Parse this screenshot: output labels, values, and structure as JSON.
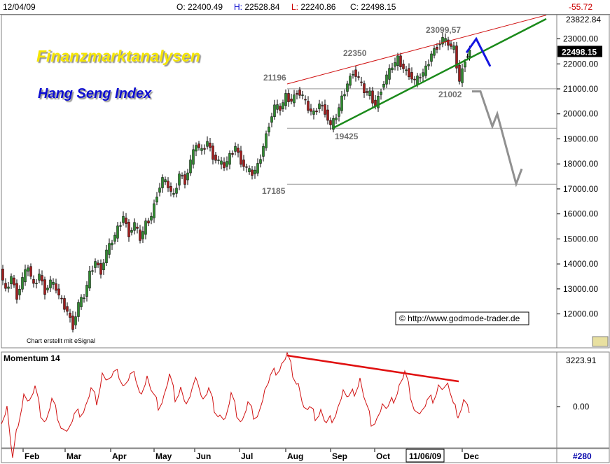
{
  "header": {
    "date": "12/04/09",
    "open_label": "O:",
    "open": "22400.49",
    "high_label": "H:",
    "high": "22528.84",
    "low_label": "L:",
    "low": "22240.86",
    "close_label": "C:",
    "close": "22498.15",
    "change": "-55.72"
  },
  "chart_data": [
    {
      "type": "candlestick",
      "title": "Finanzmarktanalysen",
      "subtitle": "Hang Seng Index",
      "credit": "Chart erstellt mit eSignal",
      "credit_link": "eSignal",
      "watermark": "http://www.godmode-trader.de",
      "ylim": [
        11000,
        23822.84
      ],
      "y_ticks": [
        12000,
        13000,
        14000,
        15000,
        16000,
        17000,
        18000,
        19000,
        20000,
        21000,
        22000,
        23000
      ],
      "y_tick_labels": [
        "12000.00",
        "13000.00",
        "14000.00",
        "15000.00",
        "16000.00",
        "17000.00",
        "18000.00",
        "19000.00",
        "20000.00",
        "21000.00",
        "22000.00",
        "23000.00"
      ],
      "y_top_label": "23822.84",
      "last_price_label": "22498.15",
      "months": [
        "Feb",
        "Mar",
        "Apr",
        "May",
        "Jun",
        "Jul",
        "Aug",
        "Sep",
        "Oct",
        "11/06/09",
        "Dec"
      ],
      "highlighted_month": "11/06/09",
      "price_path": [
        [
          0,
          13800
        ],
        [
          8,
          12900
        ],
        [
          16,
          13500
        ],
        [
          24,
          12700
        ],
        [
          32,
          13400
        ],
        [
          40,
          13900
        ],
        [
          48,
          13100
        ],
        [
          56,
          13600
        ],
        [
          64,
          12900
        ],
        [
          72,
          13300
        ],
        [
          80,
          13000
        ],
        [
          88,
          12500
        ],
        [
          96,
          12100
        ],
        [
          104,
          11500
        ],
        [
          112,
          12400
        ],
        [
          120,
          12700
        ],
        [
          128,
          13600
        ],
        [
          136,
          14100
        ],
        [
          144,
          13700
        ],
        [
          152,
          14500
        ],
        [
          160,
          14900
        ],
        [
          168,
          15400
        ],
        [
          176,
          15900
        ],
        [
          184,
          15200
        ],
        [
          192,
          15600
        ],
        [
          200,
          15000
        ],
        [
          208,
          15600
        ],
        [
          216,
          15900
        ],
        [
          224,
          16800
        ],
        [
          232,
          17400
        ],
        [
          240,
          17100
        ],
        [
          248,
          16700
        ],
        [
          256,
          17600
        ],
        [
          264,
          17300
        ],
        [
          272,
          18100
        ],
        [
          280,
          18800
        ],
        [
          288,
          18500
        ],
        [
          296,
          18900
        ],
        [
          304,
          18300
        ],
        [
          312,
          18100
        ],
        [
          320,
          17900
        ],
        [
          328,
          18300
        ],
        [
          336,
          18700
        ],
        [
          344,
          18100
        ],
        [
          352,
          17800
        ],
        [
          360,
          17600
        ],
        [
          368,
          17900
        ],
        [
          376,
          18700
        ],
        [
          384,
          19600
        ],
        [
          392,
          20300
        ],
        [
          400,
          20200
        ],
        [
          408,
          20700
        ],
        [
          416,
          20500
        ],
        [
          424,
          20900
        ],
        [
          432,
          20700
        ],
        [
          440,
          20200
        ],
        [
          448,
          20000
        ],
        [
          456,
          20400
        ],
        [
          464,
          20100
        ],
        [
          472,
          19500
        ],
        [
          480,
          19900
        ],
        [
          488,
          20600
        ],
        [
          496,
          21200
        ],
        [
          504,
          21700
        ],
        [
          512,
          21400
        ],
        [
          520,
          20900
        ],
        [
          528,
          20800
        ],
        [
          536,
          20300
        ],
        [
          544,
          21000
        ],
        [
          552,
          21500
        ],
        [
          560,
          21900
        ],
        [
          568,
          22200
        ],
        [
          576,
          21800
        ],
        [
          584,
          21600
        ],
        [
          592,
          21300
        ],
        [
          600,
          21500
        ],
        [
          608,
          21800
        ],
        [
          616,
          22400
        ],
        [
          624,
          22700
        ],
        [
          632,
          23000
        ],
        [
          640,
          22800
        ],
        [
          648,
          22600
        ],
        [
          656,
          21300
        ],
        [
          664,
          22200
        ],
        [
          670,
          22500
        ]
      ],
      "annotations": [
        {
          "label": "21196",
          "value": 21196
        },
        {
          "label": "22350",
          "value": 22350
        },
        {
          "label": "23099,57",
          "value": 23099.57
        },
        {
          "label": "21002",
          "value": 21002
        },
        {
          "label": "19425",
          "value": 19425
        },
        {
          "label": "17185",
          "value": 17185
        }
      ],
      "support_levels": [
        21002,
        19425,
        17185
      ],
      "trend_upper": [
        [
          410,
          21196
        ],
        [
          780,
          23950
        ]
      ],
      "trend_lower": [
        [
          475,
          19425
        ],
        [
          780,
          23800
        ]
      ],
      "projection_blue": [
        [
          666,
          22450
        ],
        [
          680,
          23000
        ],
        [
          700,
          21900
        ]
      ],
      "projection_grey": [
        [
          674,
          20900
        ],
        [
          686,
          20900
        ],
        [
          703,
          19500
        ],
        [
          710,
          20000
        ],
        [
          737,
          17200
        ],
        [
          745,
          17800
        ]
      ]
    },
    {
      "type": "line",
      "title": "Momentum 14",
      "y_top_label": "3223.91",
      "y_zero_label": "0.00",
      "page_label": "#280",
      "momentum_path": [
        [
          2,
          600
        ],
        [
          10,
          580
        ],
        [
          18,
          660
        ],
        [
          26,
          600
        ],
        [
          34,
          560
        ],
        [
          42,
          575
        ],
        [
          50,
          560
        ],
        [
          58,
          590
        ],
        [
          66,
          600
        ],
        [
          74,
          575
        ],
        [
          82,
          590
        ],
        [
          90,
          610
        ],
        [
          98,
          615
        ],
        [
          106,
          600
        ],
        [
          114,
          590
        ],
        [
          122,
          580
        ],
        [
          130,
          560
        ],
        [
          138,
          570
        ],
        [
          146,
          530
        ],
        [
          154,
          545
        ],
        [
          162,
          540
        ],
        [
          170,
          535
        ],
        [
          178,
          550
        ],
        [
          186,
          540
        ],
        [
          194,
          535
        ],
        [
          202,
          560
        ],
        [
          210,
          540
        ],
        [
          218,
          570
        ],
        [
          226,
          580
        ],
        [
          234,
          565
        ],
        [
          242,
          540
        ],
        [
          250,
          565
        ],
        [
          258,
          550
        ],
        [
          266,
          580
        ],
        [
          274,
          565
        ],
        [
          282,
          540
        ],
        [
          290,
          570
        ],
        [
          298,
          560
        ],
        [
          306,
          580
        ],
        [
          314,
          590
        ],
        [
          322,
          600
        ],
        [
          330,
          570
        ],
        [
          338,
          590
        ],
        [
          346,
          600
        ],
        [
          354,
          580
        ],
        [
          362,
          590
        ],
        [
          370,
          585
        ],
        [
          378,
          560
        ],
        [
          386,
          545
        ],
        [
          394,
          530
        ],
        [
          402,
          520
        ],
        [
          410,
          510
        ],
        [
          418,
          530
        ],
        [
          426,
          545
        ],
        [
          434,
          585
        ],
        [
          442,
          590
        ],
        [
          450,
          595
        ],
        [
          458,
          585
        ],
        [
          466,
          610
        ],
        [
          474,
          595
        ],
        [
          482,
          580
        ],
        [
          490,
          560
        ],
        [
          498,
          575
        ],
        [
          506,
          560
        ],
        [
          514,
          540
        ],
        [
          522,
          580
        ],
        [
          530,
          600
        ],
        [
          538,
          595
        ],
        [
          546,
          580
        ],
        [
          554,
          590
        ],
        [
          562,
          570
        ],
        [
          570,
          550
        ],
        [
          578,
          536
        ],
        [
          586,
          560
        ],
        [
          594,
          585
        ],
        [
          602,
          590
        ],
        [
          610,
          580
        ],
        [
          618,
          570
        ],
        [
          626,
          550
        ],
        [
          634,
          560
        ],
        [
          642,
          550
        ],
        [
          650,
          575
        ],
        [
          654,
          600
        ],
        [
          662,
          580
        ],
        [
          670,
          590
        ]
      ],
      "divergence_line": [
        [
          410,
          508
        ],
        [
          655,
          545
        ]
      ]
    }
  ]
}
